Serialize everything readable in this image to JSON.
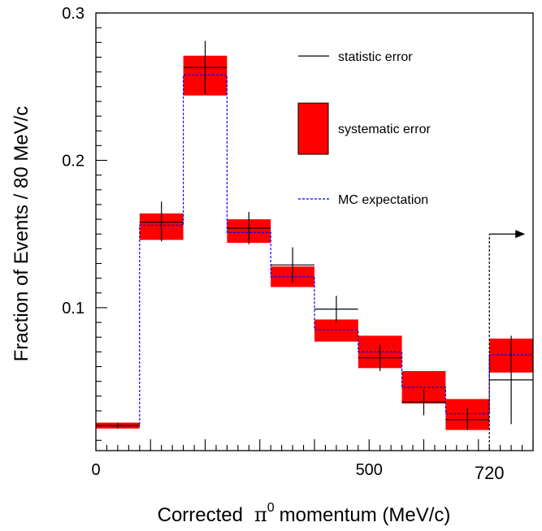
{
  "chart_data": {
    "type": "bar",
    "xlabel": "Corrected",
    "xlabel_symbol": "π",
    "xlabel_superscript": "0",
    "xlabel_suffix": "momentum (MeV/c)",
    "ylabel": "Fraction of Events / 80 MeV/c",
    "xlim": [
      0,
      800
    ],
    "ylim": [
      0.003,
      0.3
    ],
    "x_ticks": [
      {
        "value": 0,
        "label": "0"
      },
      {
        "value": 500,
        "label": "500"
      },
      {
        "value": 720,
        "label": "720"
      }
    ],
    "y_ticks": [
      {
        "value": 0.1,
        "label": "0.1"
      },
      {
        "value": 0.2,
        "label": "0.2"
      },
      {
        "value": 0.3,
        "label": "0.3"
      }
    ],
    "bins": [
      {
        "x_low": 0,
        "x_high": 80,
        "data": 0.02,
        "stat_low": 0.018,
        "stat_high": 0.022,
        "sys_low": 0.018,
        "sys_high": 0.022,
        "mc": 0.02
      },
      {
        "x_low": 80,
        "x_high": 160,
        "data": 0.158,
        "stat_low": 0.145,
        "stat_high": 0.172,
        "sys_low": 0.146,
        "sys_high": 0.164,
        "mc": 0.156
      },
      {
        "x_low": 160,
        "x_high": 240,
        "data": 0.263,
        "stat_low": 0.245,
        "stat_high": 0.281,
        "sys_low": 0.244,
        "sys_high": 0.271,
        "mc": 0.258
      },
      {
        "x_low": 240,
        "x_high": 320,
        "data": 0.154,
        "stat_low": 0.143,
        "stat_high": 0.165,
        "sys_low": 0.144,
        "sys_high": 0.16,
        "mc": 0.151
      },
      {
        "x_low": 320,
        "x_high": 400,
        "data": 0.129,
        "stat_low": 0.117,
        "stat_high": 0.141,
        "sys_low": 0.114,
        "sys_high": 0.128,
        "mc": 0.121
      },
      {
        "x_low": 400,
        "x_high": 480,
        "data": 0.099,
        "stat_low": 0.09,
        "stat_high": 0.108,
        "sys_low": 0.077,
        "sys_high": 0.092,
        "mc": 0.085
      },
      {
        "x_low": 480,
        "x_high": 560,
        "data": 0.066,
        "stat_low": 0.057,
        "stat_high": 0.075,
        "sys_low": 0.059,
        "sys_high": 0.081,
        "mc": 0.07
      },
      {
        "x_low": 560,
        "x_high": 640,
        "data": 0.036,
        "stat_low": 0.027,
        "stat_high": 0.045,
        "sys_low": 0.035,
        "sys_high": 0.057,
        "mc": 0.046
      },
      {
        "x_low": 640,
        "x_high": 720,
        "data": 0.024,
        "stat_low": 0.017,
        "stat_high": 0.032,
        "sys_low": 0.017,
        "sys_high": 0.038,
        "mc": 0.028
      },
      {
        "x_low": 720,
        "x_high": 800,
        "data": 0.051,
        "stat_low": 0.021,
        "stat_high": 0.081,
        "sys_low": 0.056,
        "sys_high": 0.079,
        "mc": 0.068
      }
    ],
    "cut": {
      "x": 720,
      "y_top": 0.15
    },
    "legend": {
      "placement": "top-right",
      "stat_label": "statistic error",
      "sys_label": "systematic error",
      "mc_label": "MC expectation"
    },
    "colors": {
      "systematic": "#ff0000",
      "mc": "#0000ff",
      "data": "#000000"
    }
  }
}
